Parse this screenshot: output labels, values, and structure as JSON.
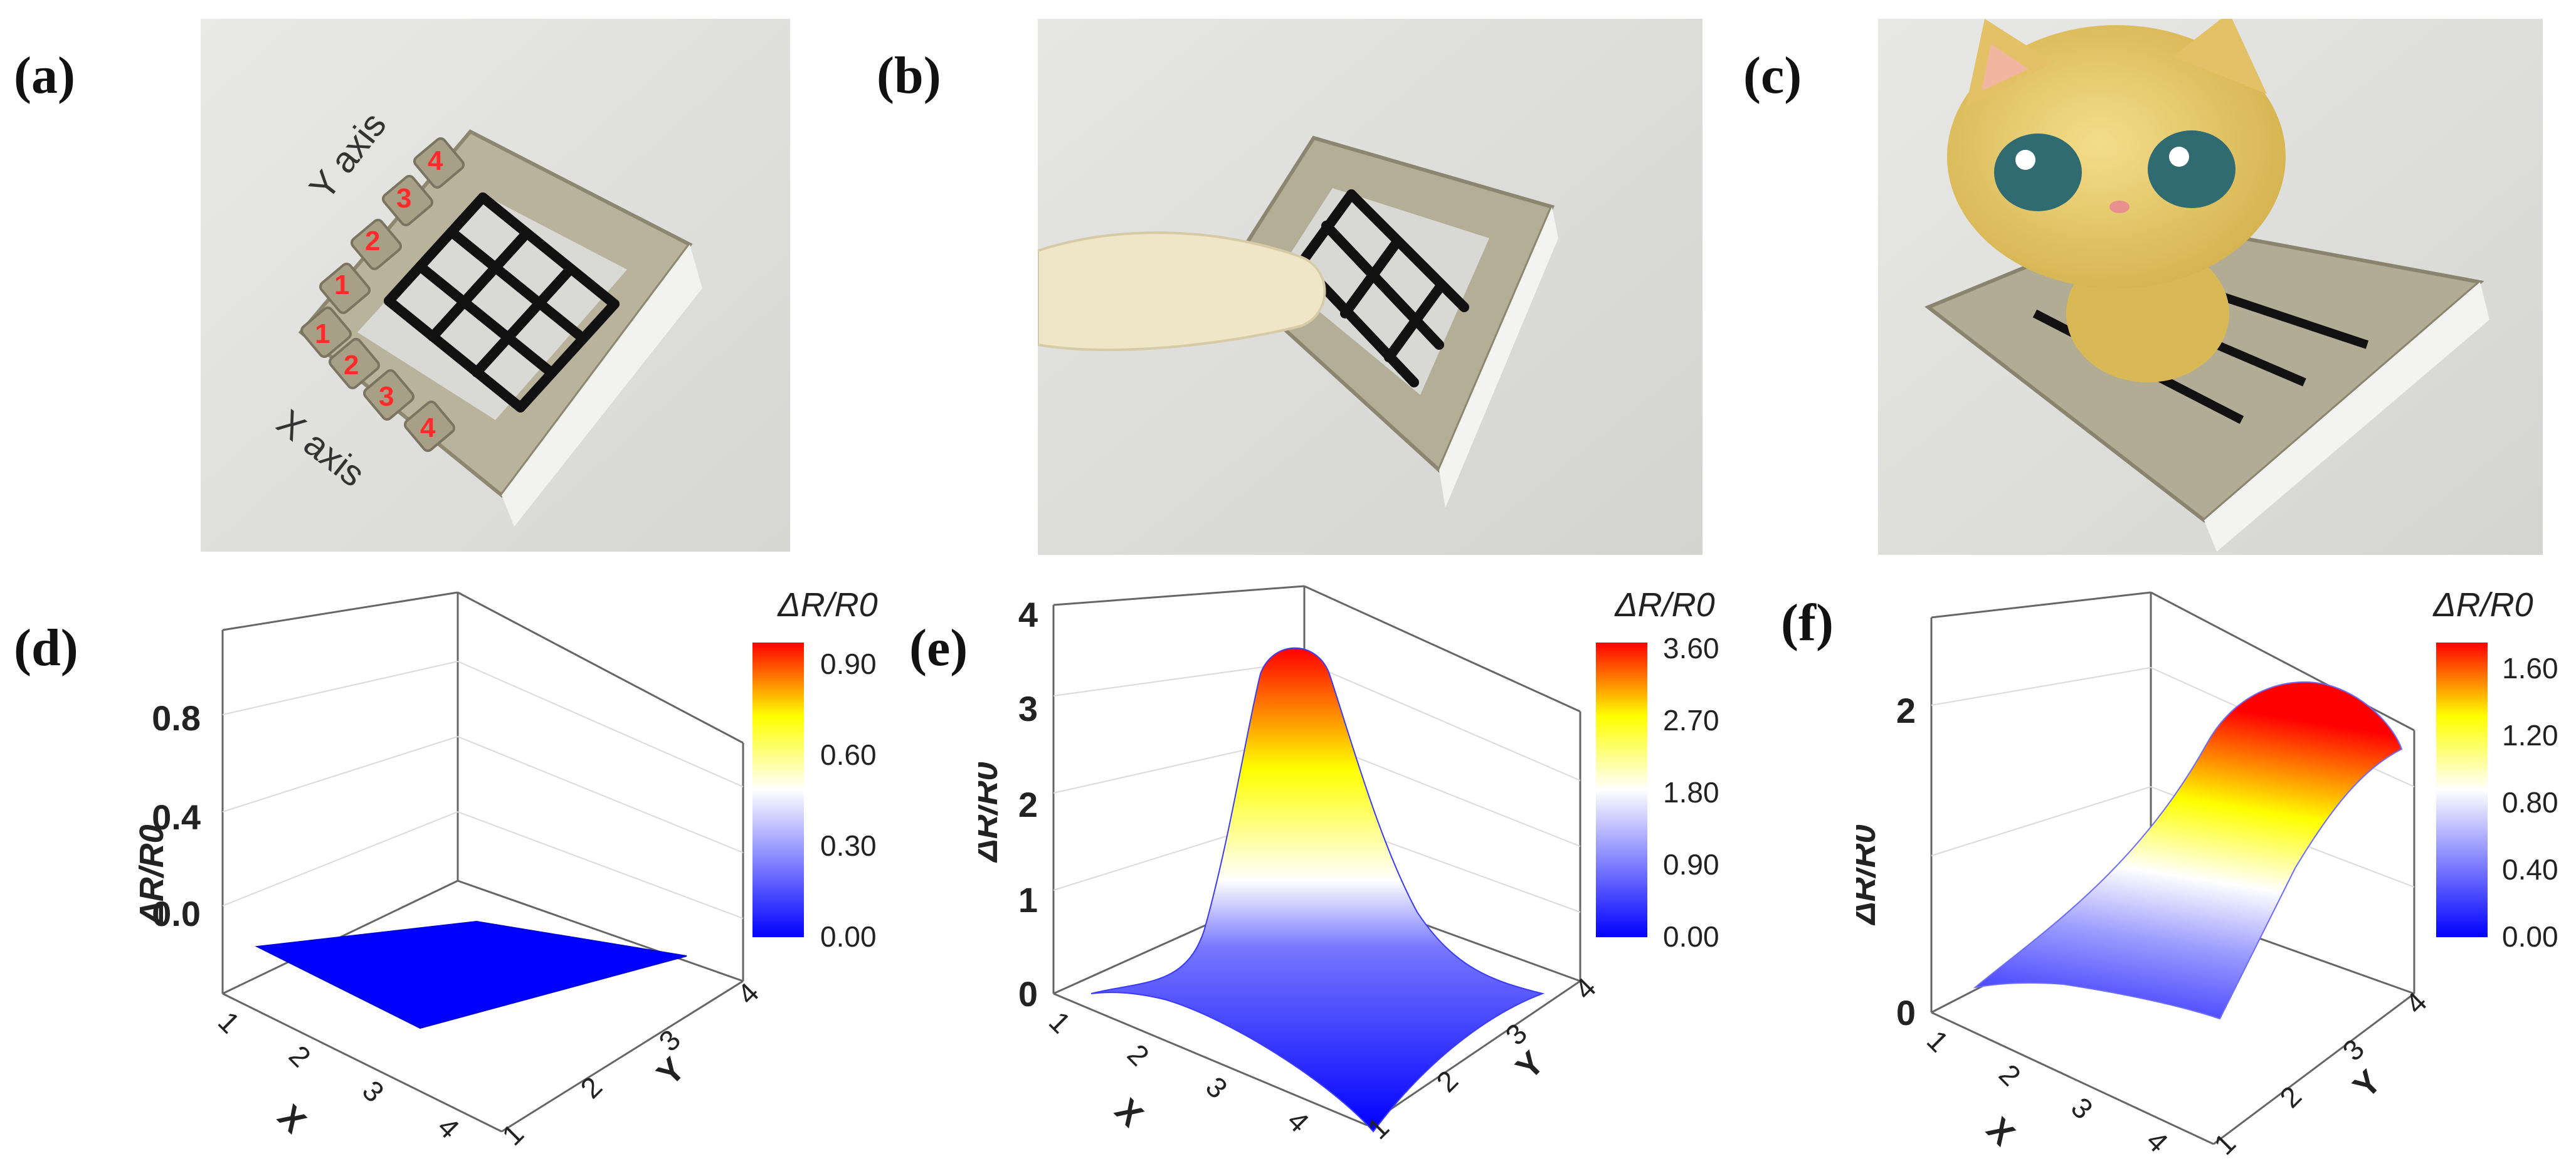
{
  "panel_labels": [
    "(a)",
    "(b)",
    "(c)",
    "(d)",
    "(e)",
    "(f)"
  ],
  "photo_a": {
    "x_axis_label": "X axis",
    "y_axis_label": "Y axis",
    "x_numbers": [
      "1",
      "2",
      "3",
      "4"
    ],
    "y_numbers": [
      "1",
      "2",
      "3",
      "4"
    ]
  },
  "colors": {
    "low": "#0000ff",
    "mid": "#ffffff",
    "high_mid": "#ffff00",
    "high": "#ff0000",
    "marker_red": "#ff2a2a"
  },
  "chart_data": [
    {
      "type": "surface3d",
      "panel": "(d)",
      "xlabel": "X",
      "ylabel": "Y",
      "zlabel": "ΔR/R0",
      "x_ticks": [
        "1",
        "2",
        "3",
        "4"
      ],
      "y_ticks": [
        "1",
        "2",
        "3",
        "4"
      ],
      "z_ticks": [
        "0.0",
        "0.4",
        "0.8"
      ],
      "zlim": [
        0,
        1.0
      ],
      "colorbar_title": "ΔR/R0",
      "colorbar_ticks": [
        "0.00",
        "0.30",
        "0.60",
        "0.90"
      ],
      "colorbar_range": [
        0,
        0.96
      ],
      "grid": [
        [
          0,
          0,
          0,
          0
        ],
        [
          0,
          0,
          0,
          0
        ],
        [
          0,
          0,
          0,
          0
        ],
        [
          0,
          0,
          0,
          0
        ]
      ]
    },
    {
      "type": "surface3d",
      "panel": "(e)",
      "xlabel": "X",
      "ylabel": "Y",
      "zlabel": "ΔR/R0",
      "x_ticks": [
        "1",
        "2",
        "3",
        "4"
      ],
      "y_ticks": [
        "1",
        "2",
        "3",
        "4"
      ],
      "z_ticks": [
        "0",
        "1",
        "2",
        "3",
        "4"
      ],
      "zlim": [
        0,
        4.0
      ],
      "colorbar_title": "ΔR/R0",
      "colorbar_ticks": [
        "0.00",
        "0.90",
        "1.80",
        "2.70",
        "3.60"
      ],
      "colorbar_range": [
        0,
        3.8
      ],
      "peak": {
        "x": 2.5,
        "y": 2.5,
        "z": 3.8
      }
    },
    {
      "type": "surface3d",
      "panel": "(f)",
      "xlabel": "X",
      "ylabel": "Y",
      "zlabel": "ΔR/R0",
      "x_ticks": [
        "1",
        "2",
        "3",
        "4"
      ],
      "y_ticks": [
        "1",
        "2",
        "3",
        "4"
      ],
      "z_ticks": [
        "0",
        "2"
      ],
      "zlim": [
        0,
        2.6
      ],
      "colorbar_title": "ΔR/R0",
      "colorbar_ticks": [
        "0.00",
        "0.40",
        "0.80",
        "1.20",
        "1.60"
      ],
      "colorbar_range": [
        0,
        1.75
      ],
      "peak": {
        "x": 2.5,
        "y": 3.5,
        "z": 1.75
      }
    }
  ]
}
